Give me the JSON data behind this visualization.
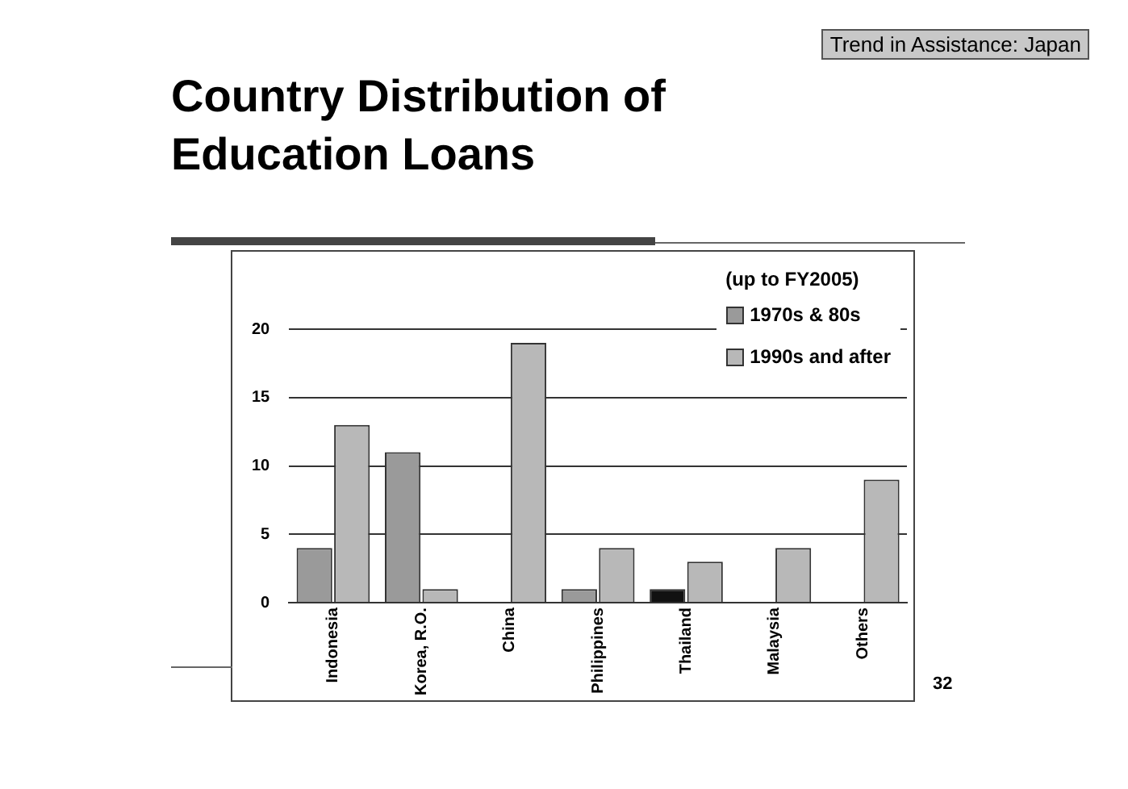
{
  "chart_data": {
    "type": "bar",
    "title": "Country Distribution of Education Loans",
    "subtitle": "Trend in Assistance: Japan",
    "categories": [
      "Indonesia",
      "Korea, R.O.",
      "China",
      "Philippines",
      "Thailand",
      "Malaysia",
      "Others"
    ],
    "series": [
      {
        "name": "1970s & 80s",
        "color": "#9a9a9a",
        "colors": [
          "#9a9a9a",
          "#9a9a9a",
          "#9a9a9a",
          "#9a9a9a",
          "#111111",
          "#9a9a9a",
          "#9a9a9a"
        ],
        "values": [
          4,
          11,
          0,
          1,
          1,
          0,
          0
        ]
      },
      {
        "name": "1990s and after",
        "color": "#b8b8b8",
        "values": [
          13,
          1,
          19,
          4,
          3,
          4,
          9
        ]
      }
    ],
    "legend_title": "(up to FY2005)",
    "legend": "top right",
    "ylim": [
      0,
      20
    ],
    "yticks": [
      0,
      5,
      10,
      15,
      20
    ],
    "grid": "y",
    "annotations": [
      "32"
    ]
  }
}
